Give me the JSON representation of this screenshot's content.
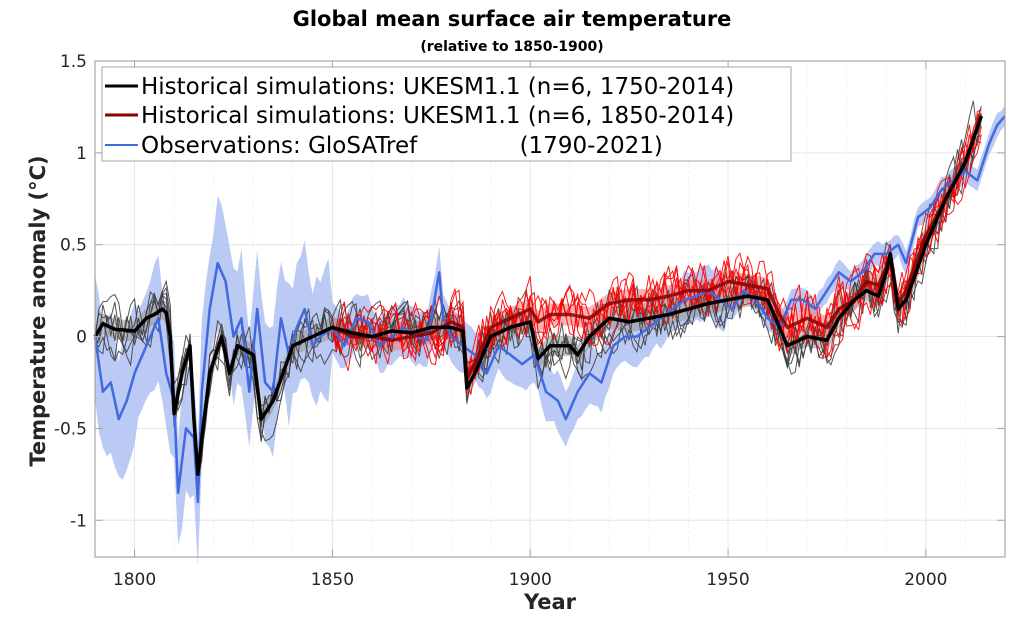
{
  "chart_data": {
    "type": "line",
    "title": "Global mean surface air temperature",
    "subtitle": "(relative to 1850-1900)",
    "xlabel": "Year",
    "ylabel": "Temperature anomaly (°C)",
    "xlim": [
      1790,
      2020
    ],
    "ylim": [
      -1.2,
      1.5
    ],
    "xticks": [
      1800,
      1850,
      1900,
      1950,
      2000
    ],
    "xtick_labels": [
      "1800",
      "1850",
      "1900",
      "1950",
      "2000"
    ],
    "yticks": [
      1.5,
      1,
      0.5,
      0,
      -0.5,
      -1
    ],
    "ytick_labels": [
      "1.5",
      "1",
      "0.5",
      "0",
      "-0.5",
      "-1"
    ],
    "grid": true,
    "minor_grid_x": true,
    "legend_position": "top-left",
    "legend": [
      {
        "label": "Historical simulations: UKESM1.1 (n=6, 1750-2014)",
        "color": "#000000"
      },
      {
        "label": "Historical simulations: UKESM1.1 (n=6, 1850-2014)",
        "color": "#8b0000"
      },
      {
        "label": "Observations: GloSATref              (1790-2021)",
        "color": "#4169e1"
      }
    ],
    "series": [
      {
        "name": "Historical simulations: UKESM1.1 (n=6, 1750-2014) ensemble mean",
        "color": "#000000",
        "member_color": "#404040",
        "members": 6,
        "spread_color": "#999999",
        "x": [
          1790,
          1792,
          1795,
          1800,
          1803,
          1805,
          1807,
          1808,
          1809,
          1810,
          1812,
          1814,
          1815,
          1816,
          1817,
          1819,
          1822,
          1824,
          1826,
          1830,
          1832,
          1835,
          1840,
          1845,
          1850,
          1855,
          1860,
          1865,
          1870,
          1875,
          1880,
          1883,
          1884,
          1886,
          1890,
          1895,
          1900,
          1902,
          1905,
          1910,
          1912,
          1915,
          1920,
          1925,
          1930,
          1935,
          1940,
          1945,
          1950,
          1955,
          1960,
          1963,
          1965,
          1970,
          1975,
          1978,
          1982,
          1985,
          1988,
          1990,
          1991,
          1993,
          1995,
          2000,
          2005,
          2010,
          2014
        ],
        "y": [
          0.0,
          0.07,
          0.04,
          0.03,
          0.1,
          0.12,
          0.15,
          0.13,
          0.0,
          -0.42,
          -0.2,
          -0.05,
          -0.45,
          -0.75,
          -0.55,
          -0.2,
          0.0,
          -0.2,
          -0.05,
          -0.1,
          -0.45,
          -0.35,
          -0.05,
          0.0,
          0.05,
          0.02,
          0.0,
          0.03,
          0.02,
          0.05,
          0.05,
          0.03,
          -0.28,
          -0.2,
          0.0,
          0.05,
          0.08,
          -0.12,
          -0.05,
          -0.05,
          -0.1,
          0.0,
          0.1,
          0.08,
          0.1,
          0.12,
          0.15,
          0.18,
          0.2,
          0.22,
          0.2,
          0.05,
          -0.05,
          0.0,
          -0.02,
          0.1,
          0.2,
          0.25,
          0.22,
          0.35,
          0.45,
          0.15,
          0.2,
          0.5,
          0.75,
          0.95,
          1.2
        ]
      },
      {
        "name": "Historical simulations: UKESM1.1 (n=6, 1850-2014) ensemble mean",
        "color": "#8b0000",
        "member_color": "#ff0000",
        "members": 6,
        "spread_color": "#f08080",
        "x": [
          1850,
          1855,
          1860,
          1865,
          1870,
          1875,
          1880,
          1883,
          1884,
          1886,
          1890,
          1895,
          1900,
          1902,
          1905,
          1910,
          1915,
          1920,
          1925,
          1930,
          1935,
          1940,
          1945,
          1950,
          1955,
          1960,
          1963,
          1965,
          1970,
          1975,
          1978,
          1982,
          1985,
          1988,
          1990,
          1991,
          1993,
          1995,
          2000,
          2005,
          2010,
          2014
        ],
        "y": [
          0.05,
          0.0,
          0.0,
          -0.02,
          0.0,
          0.02,
          0.08,
          0.05,
          -0.22,
          -0.15,
          0.05,
          0.1,
          0.15,
          0.08,
          0.12,
          0.12,
          0.1,
          0.18,
          0.2,
          0.2,
          0.22,
          0.25,
          0.25,
          0.3,
          0.28,
          0.26,
          0.12,
          0.05,
          0.1,
          0.05,
          0.15,
          0.2,
          0.3,
          0.28,
          0.38,
          0.45,
          0.18,
          0.25,
          0.55,
          0.75,
          0.95,
          1.2
        ]
      },
      {
        "name": "Observations: GloSATref (1790-2021)",
        "color": "#4169e1",
        "spread_color": "#a4b8f0",
        "x": [
          1790,
          1792,
          1794,
          1796,
          1798,
          1800,
          1802,
          1804,
          1806,
          1808,
          1810,
          1811,
          1813,
          1815,
          1816,
          1817,
          1819,
          1821,
          1823,
          1825,
          1827,
          1829,
          1831,
          1833,
          1835,
          1837,
          1839,
          1841,
          1843,
          1845,
          1847,
          1850,
          1853,
          1856,
          1859,
          1862,
          1865,
          1868,
          1871,
          1874,
          1877,
          1878,
          1880,
          1883,
          1886,
          1889,
          1892,
          1895,
          1898,
          1901,
          1904,
          1907,
          1909,
          1912,
          1915,
          1918,
          1921,
          1924,
          1927,
          1930,
          1933,
          1936,
          1939,
          1942,
          1945,
          1948,
          1951,
          1954,
          1957,
          1960,
          1963,
          1966,
          1969,
          1972,
          1975,
          1978,
          1981,
          1984,
          1987,
          1990,
          1993,
          1995,
          1998,
          2001,
          2004,
          2007,
          2010,
          2013,
          2016,
          2018,
          2020,
          2021
        ],
        "y": [
          0.0,
          -0.3,
          -0.25,
          -0.45,
          -0.35,
          -0.2,
          -0.1,
          -0.0,
          0.1,
          -0.2,
          -0.35,
          -0.85,
          -0.5,
          -0.55,
          -0.9,
          -0.3,
          0.15,
          0.4,
          0.3,
          0.0,
          0.1,
          -0.3,
          0.15,
          -0.25,
          -0.3,
          0.1,
          -0.1,
          0.05,
          0.15,
          -0.05,
          0.0,
          0.05,
          -0.05,
          0.1,
          0.08,
          -0.05,
          0.0,
          0.05,
          0.0,
          -0.02,
          0.35,
          0.1,
          0.0,
          -0.05,
          -0.1,
          -0.2,
          -0.05,
          -0.1,
          -0.15,
          -0.1,
          -0.3,
          -0.35,
          -0.45,
          -0.3,
          -0.2,
          -0.25,
          -0.05,
          0.0,
          0.0,
          0.05,
          0.1,
          0.15,
          0.2,
          0.22,
          0.25,
          0.2,
          0.15,
          0.25,
          0.2,
          0.1,
          0.05,
          0.2,
          0.2,
          0.15,
          0.25,
          0.35,
          0.3,
          0.35,
          0.45,
          0.45,
          0.5,
          0.4,
          0.65,
          0.7,
          0.8,
          0.85,
          0.9,
          0.85,
          1.05,
          1.15,
          1.2,
          1.0
        ]
      }
    ]
  }
}
